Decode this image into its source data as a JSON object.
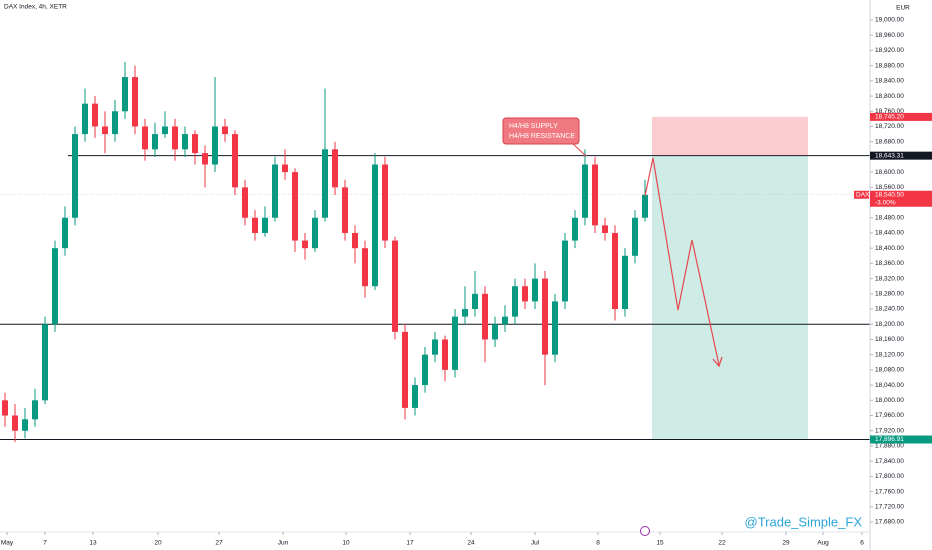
{
  "chart_data": {
    "type": "candlestick",
    "title": "DAX Index, 4h, XETR",
    "currency": "EUR",
    "symbol": "DAX",
    "watermark": "@Trade_Simple_FX",
    "up_color": "#089981",
    "down_color": "#f23645",
    "ylim": [
      17680,
      19000
    ],
    "xlim": [
      0,
      87
    ],
    "yticks": [
      {
        "value": 19000,
        "label": "19,000.00"
      },
      {
        "value": 18960,
        "label": "18,960.00"
      },
      {
        "value": 18920,
        "label": "18,920.00"
      },
      {
        "value": 18880,
        "label": "18,880.00"
      },
      {
        "value": 18840,
        "label": "18,840.00"
      },
      {
        "value": 18800,
        "label": "18,800.00"
      },
      {
        "value": 18760,
        "label": "18,760.00"
      },
      {
        "value": 18720,
        "label": "18,720.00"
      },
      {
        "value": 18680,
        "label": "18,680.00"
      },
      {
        "value": 18600,
        "label": "18,600.00"
      },
      {
        "value": 18560,
        "label": "18,560.00"
      },
      {
        "value": 18480,
        "label": "18,480.00"
      },
      {
        "value": 18440,
        "label": "18,440.00"
      },
      {
        "value": 18400,
        "label": "18,400.00"
      },
      {
        "value": 18360,
        "label": "18,360.00"
      },
      {
        "value": 18320,
        "label": "18,320.00"
      },
      {
        "value": 18280,
        "label": "18,280.00"
      },
      {
        "value": 18240,
        "label": "18,240.00"
      },
      {
        "value": 18200,
        "label": "18,200.00"
      },
      {
        "value": 18160,
        "label": "18,160.00"
      },
      {
        "value": 18120,
        "label": "18,120.00"
      },
      {
        "value": 18080,
        "label": "18,080.00"
      },
      {
        "value": 18040,
        "label": "18,040.00"
      },
      {
        "value": 18000,
        "label": "18,000.00"
      },
      {
        "value": 17960,
        "label": "17,960.00"
      },
      {
        "value": 17920,
        "label": "17,920.00"
      },
      {
        "value": 17880,
        "label": "17,880.00"
      },
      {
        "value": 17840,
        "label": "17,840.00"
      },
      {
        "value": 17800,
        "label": "17,800.00"
      },
      {
        "value": 17760,
        "label": "17,760.00"
      },
      {
        "value": 17720,
        "label": "17,720.00"
      },
      {
        "value": 17680,
        "label": "17,680.00"
      }
    ],
    "xticks": [
      {
        "value": 0.7,
        "label": "May"
      },
      {
        "value": 4.5,
        "label": "7"
      },
      {
        "value": 9.3,
        "label": "13"
      },
      {
        "value": 15.8,
        "label": "20"
      },
      {
        "value": 21.9,
        "label": "27"
      },
      {
        "value": 28.3,
        "label": "Jun"
      },
      {
        "value": 34.6,
        "label": "10"
      },
      {
        "value": 41,
        "label": "17"
      },
      {
        "value": 47.1,
        "label": "24"
      },
      {
        "value": 53.5,
        "label": "Jul"
      },
      {
        "value": 59.8,
        "label": "8"
      },
      {
        "value": 66,
        "label": "15"
      },
      {
        "value": 72.2,
        "label": "22"
      },
      {
        "value": 78.6,
        "label": "29"
      },
      {
        "value": 82.3,
        "label": "Aug"
      },
      {
        "value": 86.2,
        "label": "6"
      }
    ],
    "ohlc": [
      [
        18000,
        18020,
        17930,
        17960
      ],
      [
        17960,
        17990,
        17890,
        17920
      ],
      [
        17920,
        17980,
        17900,
        17950
      ],
      [
        17950,
        18030,
        17930,
        18000
      ],
      [
        18000,
        18220,
        17990,
        18200
      ],
      [
        18200,
        18420,
        18180,
        18400
      ],
      [
        18400,
        18510,
        18380,
        18480
      ],
      [
        18480,
        18720,
        18460,
        18700
      ],
      [
        18700,
        18820,
        18680,
        18780
      ],
      [
        18780,
        18800,
        18690,
        18720
      ],
      [
        18720,
        18760,
        18650,
        18700
      ],
      [
        18700,
        18790,
        18680,
        18760
      ],
      [
        18760,
        18890,
        18740,
        18850
      ],
      [
        18850,
        18880,
        18700,
        18720
      ],
      [
        18720,
        18740,
        18630,
        18660
      ],
      [
        18660,
        18730,
        18640,
        18700
      ],
      [
        18700,
        18760,
        18690,
        18720
      ],
      [
        18720,
        18740,
        18630,
        18660
      ],
      [
        18660,
        18720,
        18640,
        18700
      ],
      [
        18700,
        18710,
        18620,
        18650
      ],
      [
        18650,
        18670,
        18560,
        18620
      ],
      [
        18620,
        18850,
        18600,
        18720
      ],
      [
        18720,
        18740,
        18680,
        18700
      ],
      [
        18700,
        18710,
        18540,
        18560
      ],
      [
        18560,
        18580,
        18460,
        18480
      ],
      [
        18480,
        18500,
        18420,
        18440
      ],
      [
        18440,
        18510,
        18430,
        18480
      ],
      [
        18480,
        18640,
        18470,
        18620
      ],
      [
        18620,
        18660,
        18580,
        18600
      ],
      [
        18600,
        18610,
        18390,
        18420
      ],
      [
        18420,
        18440,
        18370,
        18400
      ],
      [
        18400,
        18500,
        18390,
        18480
      ],
      [
        18480,
        18820,
        18470,
        18660
      ],
      [
        18660,
        18680,
        18540,
        18560
      ],
      [
        18560,
        18580,
        18420,
        18440
      ],
      [
        18440,
        18460,
        18360,
        18400
      ],
      [
        18400,
        18420,
        18270,
        18300
      ],
      [
        18300,
        18650,
        18290,
        18620
      ],
      [
        18620,
        18640,
        18400,
        18420
      ],
      [
        18420,
        18430,
        18160,
        18180
      ],
      [
        18180,
        18200,
        17950,
        17980
      ],
      [
        17980,
        18060,
        17960,
        18040
      ],
      [
        18040,
        18140,
        18020,
        18120
      ],
      [
        18120,
        18180,
        18100,
        18160
      ],
      [
        18160,
        18170,
        18050,
        18080
      ],
      [
        18080,
        18240,
        18060,
        18220
      ],
      [
        18220,
        18300,
        18200,
        18240
      ],
      [
        18240,
        18340,
        18220,
        18280
      ],
      [
        18280,
        18300,
        18100,
        18160
      ],
      [
        18160,
        18220,
        18140,
        18200
      ],
      [
        18200,
        18250,
        18180,
        18220
      ],
      [
        18220,
        18320,
        18200,
        18300
      ],
      [
        18300,
        18320,
        18240,
        18260
      ],
      [
        18260,
        18360,
        18240,
        18320
      ],
      [
        18320,
        18340,
        18040,
        18120
      ],
      [
        18120,
        18280,
        18100,
        18260
      ],
      [
        18260,
        18440,
        18240,
        18420
      ],
      [
        18420,
        18500,
        18400,
        18480
      ],
      [
        18480,
        18660,
        18460,
        18620
      ],
      [
        18620,
        18640,
        18440,
        18460
      ],
      [
        18460,
        18480,
        18420,
        18440
      ],
      [
        18440,
        18460,
        18210,
        18240
      ],
      [
        18240,
        18400,
        18220,
        18380
      ],
      [
        18380,
        18500,
        18360,
        18480
      ],
      [
        18480,
        18580,
        18470,
        18540.5
      ]
    ],
    "levels": [
      18643.31,
      18200,
      17896.91
    ],
    "trade": {
      "stop": 18745.2,
      "entry": 18643.31,
      "target": 17896.91
    },
    "price_tags": [
      {
        "value": 18745.2,
        "label": "18,745.20",
        "color": "#f23645"
      },
      {
        "value": 18643.31,
        "label": "18,643.31",
        "color": "#131722"
      },
      {
        "value": 18540.5,
        "label": "18,540.50",
        "sub": "-3.00%",
        "color": "#f23645"
      },
      {
        "value": 17896.91,
        "label": "17,896.91",
        "color": "#089981"
      }
    ],
    "annotation": [
      "H4/H8 SUPPLY",
      "H4/H8 RESISTANCE"
    ]
  }
}
